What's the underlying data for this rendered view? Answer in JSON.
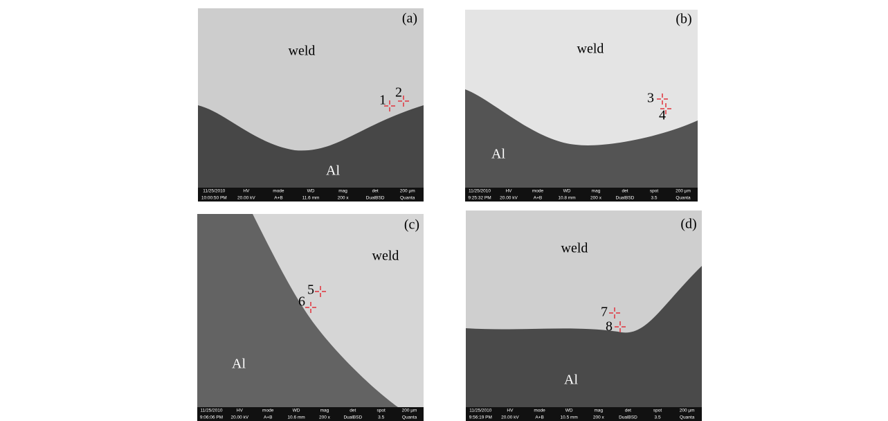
{
  "panels": [
    {
      "label": "(a)",
      "regions": [
        "weld",
        "Al"
      ],
      "points": [
        "1",
        "2"
      ],
      "info": {
        "header": [
          "11/25/2010",
          "HV",
          "mode",
          "WD",
          "mag",
          "det",
          "200 µm"
        ],
        "values": [
          "10:00:50 PM",
          "20.00 kV",
          "A+B",
          "11.6 mm",
          "200 x",
          "DualBSD",
          "Quanta"
        ]
      }
    },
    {
      "label": "(b)",
      "regions": [
        "weld",
        "Al"
      ],
      "points": [
        "3",
        "4"
      ],
      "info": {
        "header": [
          "11/25/2010",
          "HV",
          "mode",
          "WD",
          "mag",
          "det",
          "spot",
          "200 µm"
        ],
        "values": [
          "9:25:32 PM",
          "20.00 kV",
          "A+B",
          "10.8 mm",
          "200 x",
          "DualBSD",
          "3.5",
          "Quanta"
        ]
      }
    },
    {
      "label": "(c)",
      "regions": [
        "weld",
        "Al"
      ],
      "points": [
        "5",
        "6"
      ],
      "info": {
        "header": [
          "11/25/2010",
          "HV",
          "mode",
          "WD",
          "mag",
          "det",
          "spot",
          "200 µm"
        ],
        "values": [
          "9:06:06 PM",
          "20.00 kV",
          "A+B",
          "10.6 mm",
          "200 x",
          "DualBSD",
          "3.5",
          "Quanta"
        ]
      }
    },
    {
      "label": "(d)",
      "regions": [
        "weld",
        "Al"
      ],
      "points": [
        "7",
        "8"
      ],
      "info": {
        "header": [
          "11/25/2010",
          "HV",
          "mode",
          "WD",
          "mag",
          "det",
          "spot",
          "200 µm"
        ],
        "values": [
          "9:56:19 PM",
          "20.00 kV",
          "A+B",
          "10.5 mm",
          "200 x",
          "DualBSD",
          "3.5",
          "Quanta"
        ]
      }
    }
  ]
}
